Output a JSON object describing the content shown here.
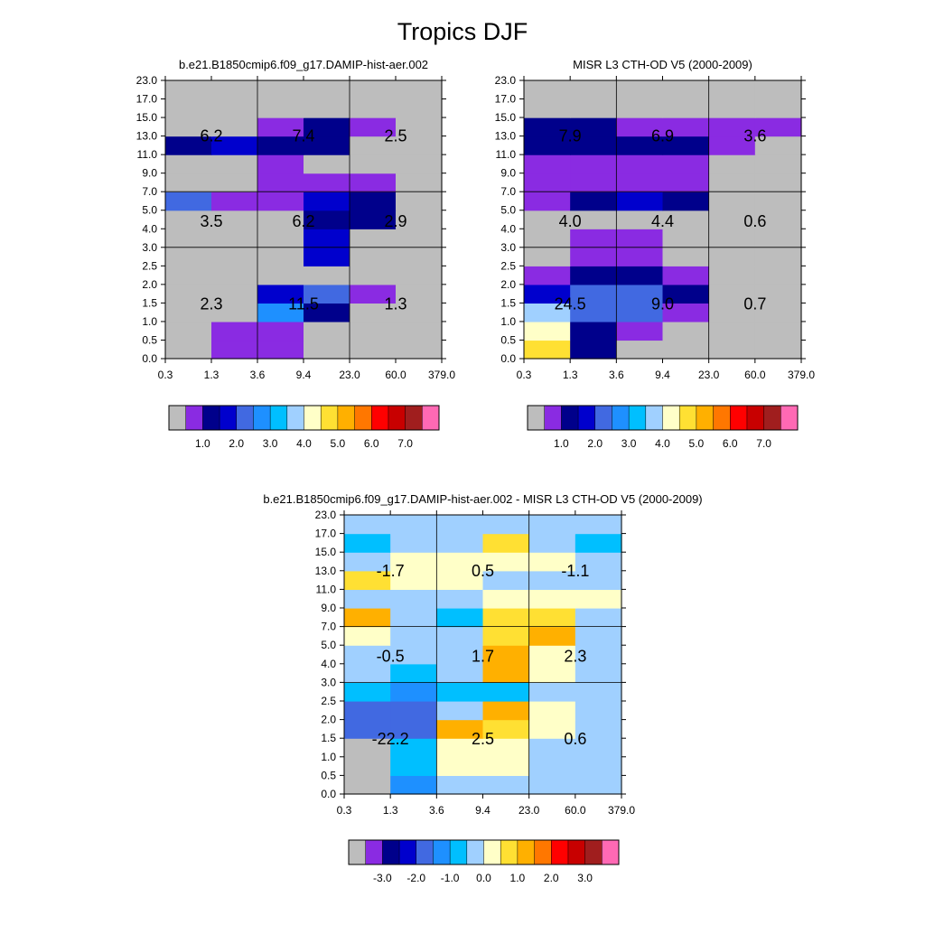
{
  "title": "Tropics DJF",
  "colors": {
    "panel_palette": [
      "#bdbdbd",
      "#8a2be2",
      "#00008b",
      "#0000cd",
      "#4169e1",
      "#1e90ff",
      "#00bfff",
      "#a0d0ff",
      "#ffffc8",
      "#ffe033",
      "#ffb000",
      "#ff7700",
      "#ff0000",
      "#c80000",
      "#a01e1e",
      "#ff69b4"
    ],
    "diff_palette": [
      "#bdbdbd",
      "#8a2be2",
      "#00008b",
      "#0000cd",
      "#4169e1",
      "#1e90ff",
      "#00bfff",
      "#a0d0ff",
      "#ffffc8",
      "#ffe033",
      "#ffb000",
      "#ff7700",
      "#ff0000",
      "#c80000",
      "#a01e1e",
      "#ff69b4"
    ]
  },
  "chart_data": [
    {
      "type": "heatmap",
      "title": "b.e21.B1850cmip6.f09_g17.DAMIP-hist-aer.002",
      "x_tick_labels": [
        "0.3",
        "1.3",
        "3.6",
        "9.4",
        "23.0",
        "60.0",
        "379.0"
      ],
      "y_tick_labels": [
        "0.0",
        "0.5",
        "1.0",
        "1.5",
        "2.0",
        "2.5",
        "3.0",
        "4.0",
        "5.0",
        "7.0",
        "9.0",
        "11.0",
        "13.0",
        "15.0",
        "17.0",
        "23.0"
      ],
      "cells_color_index_by_row_bottom_to_top": [
        [
          0,
          1,
          1,
          0,
          0,
          0
        ],
        [
          0,
          1,
          1,
          0,
          0,
          0
        ],
        [
          0,
          0,
          5,
          2,
          0,
          0
        ],
        [
          0,
          0,
          3,
          4,
          1,
          0
        ],
        [
          0,
          0,
          0,
          0,
          0,
          0
        ],
        [
          0,
          0,
          0,
          3,
          0,
          0
        ],
        [
          0,
          0,
          0,
          3,
          0,
          0
        ],
        [
          0,
          0,
          0,
          2,
          2,
          0
        ],
        [
          4,
          1,
          1,
          3,
          2,
          0
        ],
        [
          0,
          0,
          1,
          1,
          1,
          0
        ],
        [
          0,
          0,
          1,
          0,
          0,
          0
        ],
        [
          2,
          3,
          2,
          2,
          0,
          0
        ],
        [
          0,
          0,
          1,
          2,
          1,
          0
        ],
        [
          0,
          0,
          0,
          0,
          0,
          0
        ],
        [
          0,
          0,
          0,
          0,
          0,
          0
        ]
      ],
      "summary_values": {
        "high": [
          "6.2",
          "7.4",
          "2.5"
        ],
        "mid": [
          "3.5",
          "6.2",
          "2.9"
        ],
        "low": [
          "2.3",
          "11.5",
          "1.3"
        ]
      },
      "colorbar_labels": [
        "1.0",
        "2.0",
        "3.0",
        "4.0",
        "5.0",
        "6.0",
        "7.0"
      ]
    },
    {
      "type": "heatmap",
      "title": "MISR L3 CTH-OD V5 (2000-2009)",
      "x_tick_labels": [
        "0.3",
        "1.3",
        "3.6",
        "9.4",
        "23.0",
        "60.0",
        "379.0"
      ],
      "y_tick_labels": [
        "0.0",
        "0.5",
        "1.0",
        "1.5",
        "2.0",
        "2.5",
        "3.0",
        "4.0",
        "5.0",
        "7.0",
        "9.0",
        "11.0",
        "13.0",
        "15.0",
        "17.0",
        "23.0"
      ],
      "cells_color_index_by_row_bottom_to_top": [
        [
          9,
          2,
          0,
          0,
          0,
          0
        ],
        [
          8,
          2,
          1,
          0,
          0,
          0
        ],
        [
          7,
          4,
          4,
          1,
          0,
          0
        ],
        [
          3,
          4,
          4,
          2,
          0,
          0
        ],
        [
          1,
          2,
          2,
          1,
          0,
          0
        ],
        [
          0,
          1,
          1,
          0,
          0,
          0
        ],
        [
          0,
          1,
          1,
          0,
          0,
          0
        ],
        [
          0,
          0,
          0,
          0,
          0,
          0
        ],
        [
          1,
          2,
          3,
          2,
          0,
          0
        ],
        [
          1,
          1,
          1,
          1,
          0,
          0
        ],
        [
          1,
          1,
          1,
          1,
          0,
          0
        ],
        [
          2,
          2,
          2,
          2,
          1,
          0
        ],
        [
          2,
          2,
          1,
          1,
          1,
          1
        ],
        [
          0,
          0,
          0,
          0,
          0,
          0
        ],
        [
          0,
          0,
          0,
          0,
          0,
          0
        ]
      ],
      "summary_values": {
        "high": [
          "7.9",
          "6.9",
          "3.6"
        ],
        "mid": [
          "4.0",
          "4.4",
          "0.6"
        ],
        "low": [
          "24.5",
          "9.0",
          "0.7"
        ]
      },
      "colorbar_labels": [
        "1.0",
        "2.0",
        "3.0",
        "4.0",
        "5.0",
        "6.0",
        "7.0"
      ]
    },
    {
      "type": "heatmap",
      "title": "b.e21.B1850cmip6.f09_g17.DAMIP-hist-aer.002 - MISR L3 CTH-OD V5 (2000-2009)",
      "x_tick_labels": [
        "0.3",
        "1.3",
        "3.6",
        "9.4",
        "23.0",
        "60.0",
        "379.0"
      ],
      "y_tick_labels": [
        "0.0",
        "0.5",
        "1.0",
        "1.5",
        "2.0",
        "2.5",
        "3.0",
        "4.0",
        "5.0",
        "7.0",
        "9.0",
        "11.0",
        "13.0",
        "15.0",
        "17.0",
        "23.0"
      ],
      "cells_color_index_by_row_bottom_to_top": [
        [
          0,
          5,
          7,
          7,
          7,
          7
        ],
        [
          0,
          6,
          8,
          8,
          7,
          7
        ],
        [
          0,
          6,
          8,
          8,
          7,
          7
        ],
        [
          4,
          4,
          10,
          9,
          8,
          7
        ],
        [
          4,
          4,
          7,
          10,
          8,
          7
        ],
        [
          6,
          5,
          6,
          6,
          7,
          7
        ],
        [
          7,
          6,
          7,
          10,
          8,
          7
        ],
        [
          7,
          7,
          7,
          10,
          8,
          7
        ],
        [
          8,
          7,
          7,
          9,
          10,
          7
        ],
        [
          10,
          7,
          6,
          9,
          9,
          7
        ],
        [
          7,
          7,
          7,
          8,
          8,
          8
        ],
        [
          9,
          8,
          8,
          7,
          7,
          7
        ],
        [
          7,
          8,
          8,
          8,
          8,
          7
        ],
        [
          6,
          7,
          7,
          9,
          7,
          6
        ],
        [
          7,
          7,
          7,
          7,
          7,
          7
        ]
      ],
      "summary_values": {
        "high": [
          "-1.7",
          "0.5",
          "-1.1"
        ],
        "mid": [
          "-0.5",
          "1.7",
          "2.3"
        ],
        "low": [
          "-22.2",
          "2.5",
          "0.6"
        ]
      },
      "colorbar_labels": [
        "-3.0",
        "-2.0",
        "-1.0",
        "0.0",
        "1.0",
        "2.0",
        "3.0"
      ]
    }
  ]
}
